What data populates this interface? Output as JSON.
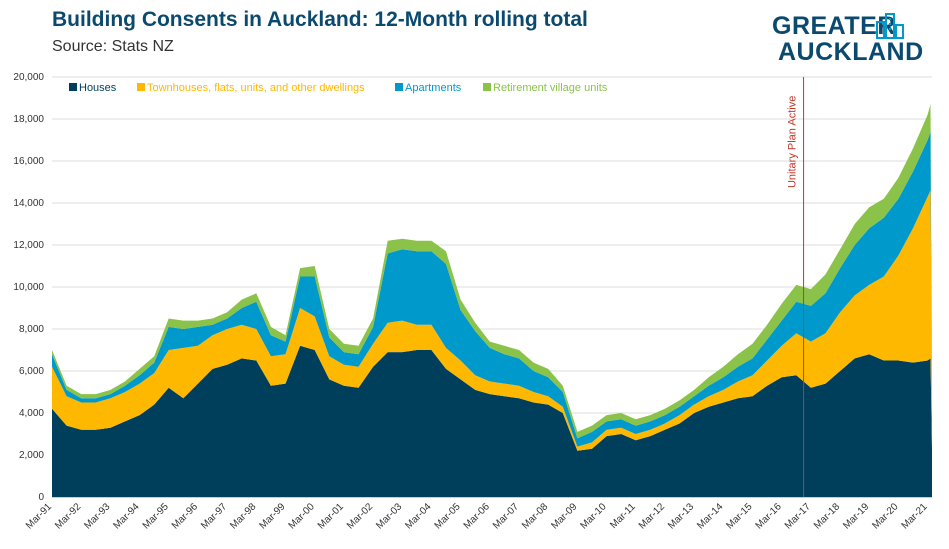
{
  "title": "Building Consents in Auckland: 12-Month rolling total",
  "subtitle": "Source: Stats NZ",
  "logo": {
    "line1": "GREATER",
    "line2": "AUCKLAND",
    "icon": "city-buildings-icon"
  },
  "chart_data": {
    "type": "area",
    "stacked": true,
    "ylim": [
      0,
      20000
    ],
    "yticks": [
      "0",
      "2,000",
      "4,000",
      "6,000",
      "8,000",
      "10,000",
      "12,000",
      "14,000",
      "16,000",
      "18,000",
      "20,000"
    ],
    "xlabels": [
      "Mar-91",
      "Mar-92",
      "Mar-93",
      "Mar-94",
      "Mar-95",
      "Mar-96",
      "Mar-97",
      "Mar-98",
      "Mar-99",
      "Mar-00",
      "Mar-01",
      "Mar-02",
      "Mar-03",
      "Mar-04",
      "Mar-05",
      "Mar-06",
      "Mar-07",
      "Mar-08",
      "Mar-09",
      "Mar-10",
      "Mar-11",
      "Mar-12",
      "Mar-13",
      "Mar-14",
      "Mar-15",
      "Mar-16",
      "Mar-17",
      "Mar-18",
      "Mar-19",
      "Mar-20",
      "Mar-21"
    ],
    "x": [
      1991.0,
      1991.5,
      1992.0,
      1992.5,
      1993.0,
      1993.5,
      1994.0,
      1994.5,
      1995.0,
      1995.5,
      1996.0,
      1996.5,
      1997.0,
      1997.5,
      1998.0,
      1998.5,
      1999.0,
      1999.5,
      2000.0,
      2000.5,
      2001.0,
      2001.5,
      2002.0,
      2002.5,
      2003.0,
      2003.5,
      2004.0,
      2004.5,
      2005.0,
      2005.5,
      2006.0,
      2006.5,
      2007.0,
      2007.5,
      2008.0,
      2008.5,
      2009.0,
      2009.5,
      2010.0,
      2010.5,
      2011.0,
      2011.5,
      2012.0,
      2012.5,
      2013.0,
      2013.5,
      2014.0,
      2014.5,
      2015.0,
      2015.5,
      2016.0,
      2016.5,
      2017.0,
      2017.5,
      2018.0,
      2018.5,
      2019.0,
      2019.5,
      2020.0,
      2020.5,
      2021.0,
      2021.1,
      2021.15
    ],
    "series": [
      {
        "name": "Houses",
        "color": "#003f5c",
        "values": [
          4200,
          3400,
          3200,
          3200,
          3300,
          3600,
          3900,
          4400,
          5200,
          4700,
          5400,
          6100,
          6300,
          6600,
          6500,
          5300,
          5400,
          7200,
          7000,
          5600,
          5300,
          5200,
          6200,
          6900,
          6900,
          7000,
          7000,
          6100,
          5600,
          5100,
          4900,
          4800,
          4700,
          4500,
          4400,
          4000,
          2200,
          2300,
          2900,
          3000,
          2700,
          2900,
          3200,
          3500,
          4000,
          4300,
          4500,
          4700,
          4800,
          5300,
          5700,
          5800,
          5200,
          5400,
          6000,
          6600,
          6800,
          6500,
          6500,
          6400,
          6500,
          6600,
          2300
        ]
      },
      {
        "name": "Townhouses, flats, units, and other dwellings",
        "color": "#ffb800",
        "values": [
          2000,
          1400,
          1300,
          1300,
          1400,
          1400,
          1500,
          1500,
          1800,
          2400,
          1800,
          1600,
          1700,
          1600,
          1500,
          1400,
          1400,
          1800,
          1600,
          1100,
          1000,
          1000,
          1100,
          1400,
          1500,
          1200,
          1200,
          1000,
          900,
          700,
          600,
          600,
          600,
          500,
          400,
          300,
          200,
          300,
          300,
          300,
          300,
          300,
          300,
          400,
          400,
          500,
          600,
          800,
          1000,
          1200,
          1500,
          2000,
          2200,
          2400,
          2800,
          3000,
          3300,
          4000,
          5000,
          6400,
          7800,
          8000,
          2600
        ]
      },
      {
        "name": "Apartments",
        "color": "#0099cc",
        "values": [
          600,
          300,
          200,
          200,
          200,
          300,
          400,
          500,
          1100,
          900,
          900,
          500,
          500,
          800,
          1300,
          1000,
          600,
          1500,
          1900,
          900,
          600,
          600,
          800,
          3300,
          3400,
          3500,
          3500,
          4000,
          2400,
          2100,
          1600,
          1400,
          1300,
          1000,
          900,
          700,
          400,
          500,
          400,
          400,
          400,
          400,
          400,
          400,
          400,
          500,
          600,
          700,
          800,
          1000,
          1200,
          1500,
          1700,
          1900,
          2100,
          2400,
          2700,
          2800,
          2700,
          2700,
          2700,
          2800,
          500
        ]
      },
      {
        "name": "Retirement village units",
        "color": "#8bc34a",
        "values": [
          200,
          200,
          200,
          200,
          200,
          200,
          300,
          300,
          400,
          400,
          300,
          300,
          300,
          400,
          400,
          400,
          300,
          400,
          500,
          400,
          400,
          400,
          400,
          600,
          500,
          500,
          500,
          600,
          500,
          400,
          300,
          400,
          400,
          400,
          400,
          300,
          300,
          300,
          300,
          300,
          300,
          300,
          300,
          300,
          300,
          400,
          500,
          600,
          700,
          700,
          800,
          800,
          800,
          900,
          900,
          1000,
          1000,
          900,
          1000,
          1100,
          1200,
          1300,
          400
        ]
      }
    ],
    "annotation": {
      "x": 2016.75,
      "label": "Unitary Plan Active",
      "color": "#c0392b"
    }
  }
}
